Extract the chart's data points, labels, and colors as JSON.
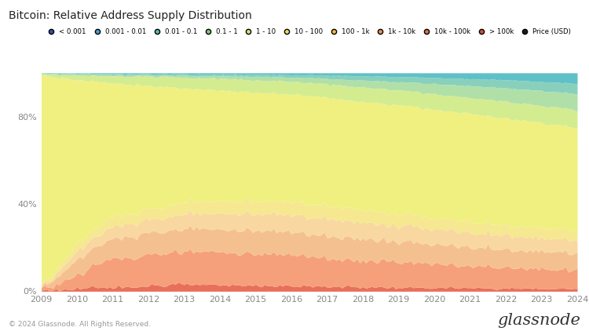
{
  "title": "Bitcoin: Relative Address Supply Distribution",
  "background_color": "#ffffff",
  "plot_bg_color": "#ffffff",
  "footer_left": "© 2024 Glassnode. All Rights Reserved.",
  "footer_right": "glassnode",
  "legend_labels": [
    "< 0.001",
    "0.001 - 0.01",
    "0.01 - 0.1",
    "0.1 - 1",
    "1 - 10",
    "10 - 100",
    "100 - 1k",
    "1k - 10k",
    "10k - 100k",
    "> 100k",
    "Price (USD)"
  ],
  "legend_colors": [
    "#3a4eab",
    "#4a9fd4",
    "#5abcb0",
    "#7dcc6e",
    "#d4e46e",
    "#f0e060",
    "#f5b842",
    "#f09050",
    "#e07040",
    "#d05038",
    "#1a1a2e"
  ],
  "years": [
    2009,
    2010,
    2011,
    2012,
    2013,
    2014,
    2015,
    2016,
    2017,
    2018,
    2019,
    2020,
    2021,
    2022,
    2023,
    2024
  ],
  "layers": {
    "names": [
      ">100k",
      "10k-100k",
      "1k-10k",
      "100-1k",
      "10-100",
      "1-10",
      "0.1-1",
      "0.01-0.1",
      "0.001-0.01",
      "<0.001"
    ],
    "colors": [
      "#e8705a",
      "#f5a07a",
      "#f5c090",
      "#f8d8a0",
      "#f5e890",
      "#f0f080",
      "#d4ec90",
      "#b0e0a8",
      "#88d0bc",
      "#60c0c8"
    ],
    "data": [
      [
        0.005,
        0.01,
        0.015,
        0.02,
        0.025,
        0.025,
        0.025,
        0.022,
        0.02,
        0.018,
        0.016,
        0.015,
        0.014,
        0.013,
        0.012,
        0.012
      ],
      [
        0.005,
        0.06,
        0.11,
        0.12,
        0.13,
        0.135,
        0.13,
        0.125,
        0.118,
        0.11,
        0.105,
        0.1,
        0.095,
        0.09,
        0.088,
        0.085
      ],
      [
        0.005,
        0.07,
        0.08,
        0.085,
        0.09,
        0.095,
        0.095,
        0.092,
        0.09,
        0.088,
        0.085,
        0.082,
        0.08,
        0.078,
        0.076,
        0.075
      ],
      [
        0.005,
        0.04,
        0.05,
        0.055,
        0.06,
        0.065,
        0.068,
        0.07,
        0.07,
        0.068,
        0.066,
        0.064,
        0.062,
        0.06,
        0.058,
        0.057
      ],
      [
        0.005,
        0.035,
        0.042,
        0.045,
        0.05,
        0.052,
        0.053,
        0.053,
        0.053,
        0.052,
        0.05,
        0.048,
        0.046,
        0.045,
        0.044,
        0.043
      ],
      [
        0.96,
        0.74,
        0.56,
        0.52,
        0.48,
        0.455,
        0.445,
        0.44,
        0.44,
        0.445,
        0.45,
        0.455,
        0.46,
        0.46,
        0.458,
        0.455
      ],
      [
        0.005,
        0.02,
        0.03,
        0.04,
        0.045,
        0.048,
        0.05,
        0.052,
        0.055,
        0.06,
        0.062,
        0.065,
        0.068,
        0.072,
        0.075,
        0.078
      ],
      [
        0.002,
        0.008,
        0.005,
        0.006,
        0.008,
        0.01,
        0.015,
        0.018,
        0.022,
        0.028,
        0.035,
        0.042,
        0.05,
        0.058,
        0.065,
        0.072
      ],
      [
        0.001,
        0.003,
        0.004,
        0.005,
        0.006,
        0.007,
        0.008,
        0.01,
        0.014,
        0.018,
        0.022,
        0.026,
        0.03,
        0.035,
        0.04,
        0.045
      ],
      [
        0.001,
        0.002,
        0.003,
        0.004,
        0.005,
        0.006,
        0.007,
        0.008,
        0.01,
        0.013,
        0.016,
        0.02,
        0.025,
        0.03,
        0.038,
        0.048
      ]
    ]
  },
  "noise_config": {
    "seed": 123,
    "layer_noise": [
      0.003,
      0.006,
      0.004,
      0.003,
      0.002,
      0.006,
      0.002,
      0.002,
      0.001,
      0.001
    ],
    "jagged_layers": [
      0,
      1,
      2
    ],
    "jagged_range": [
      12,
      55
    ],
    "jagged_amplitude": [
      0.005,
      0.012,
      0.006
    ]
  }
}
